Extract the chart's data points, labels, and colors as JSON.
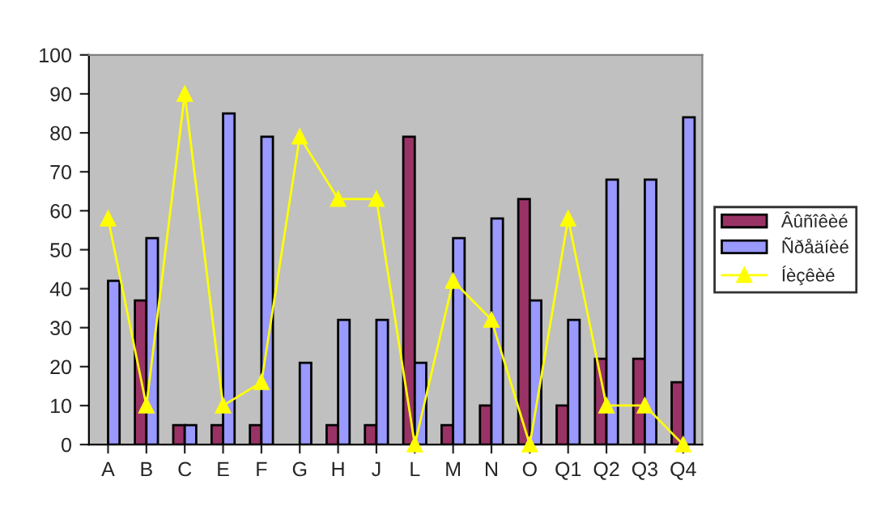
{
  "chart_data": {
    "type": "bar",
    "categories": [
      "A",
      "B",
      "C",
      "E",
      "F",
      "G",
      "H",
      "J",
      "L",
      "M",
      "N",
      "O",
      "Q1",
      "Q2",
      "Q3",
      "Q4"
    ],
    "series": [
      {
        "name": "Âûñîêèé",
        "color": "#993366",
        "values": [
          null,
          37,
          5,
          5,
          5,
          null,
          5,
          5,
          79,
          5,
          10,
          63,
          10,
          22,
          22,
          16
        ]
      },
      {
        "name": "Ñðåäíèé",
        "color": "#9999ff",
        "values": [
          42,
          53,
          5,
          85,
          79,
          21,
          32,
          32,
          21,
          53,
          58,
          37,
          32,
          68,
          68,
          84
        ]
      },
      {
        "name": "Íèçêèé",
        "color": "#ffff00",
        "type": "line",
        "marker": "triangle",
        "values": [
          58,
          10,
          90,
          10,
          16,
          79,
          63,
          63,
          0,
          42,
          32,
          0,
          58,
          10,
          10,
          0
        ]
      }
    ],
    "ylim": [
      0,
      100
    ],
    "yticks": [
      0,
      10,
      20,
      30,
      40,
      50,
      60,
      70,
      80,
      90,
      100
    ],
    "grid": false,
    "legend": "right"
  }
}
